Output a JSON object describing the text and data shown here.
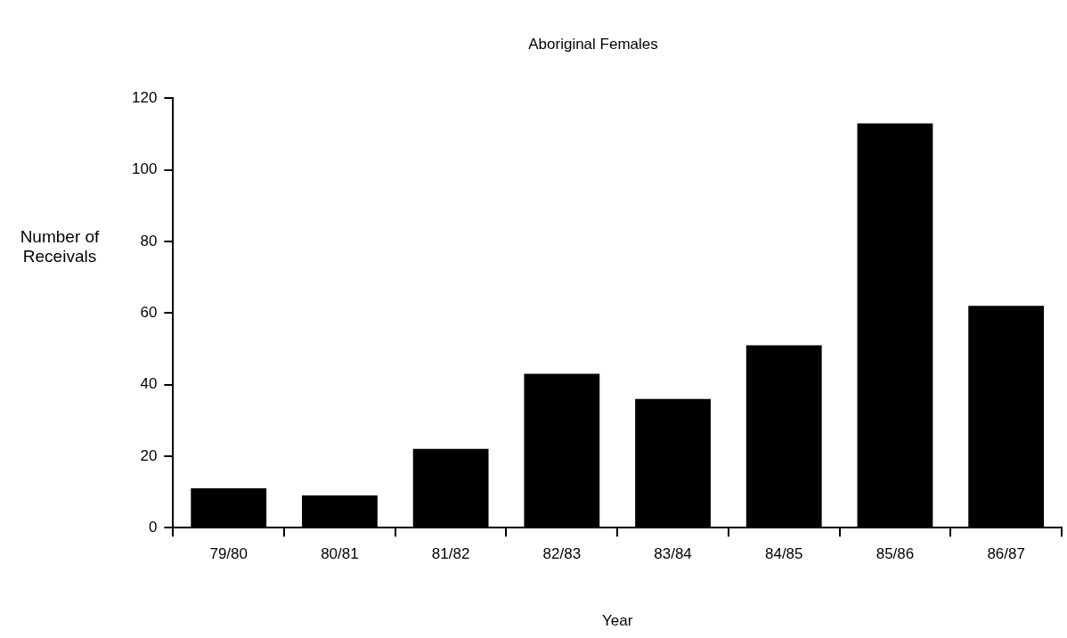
{
  "chart_data": {
    "type": "bar",
    "title": "Aboriginal Females",
    "xlabel": "Year",
    "ylabel": "Number of Receivals",
    "categories": [
      "79/80",
      "80/81",
      "81/82",
      "82/83",
      "83/84",
      "84/85",
      "85/86",
      "86/87"
    ],
    "values": [
      11,
      9,
      22,
      43,
      36,
      51,
      113,
      62
    ],
    "color": "#000000",
    "ylim": [
      0,
      120
    ],
    "yticks": [
      0,
      20,
      40,
      60,
      80,
      100,
      120
    ],
    "grid": false,
    "legend": false
  }
}
